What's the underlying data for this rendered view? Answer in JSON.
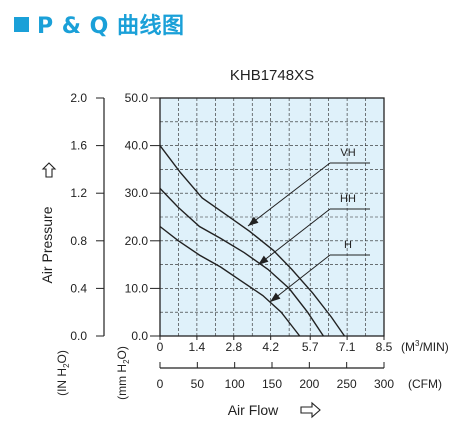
{
  "page": {
    "heading": "P & Q 曲线图",
    "accent_color": "#1aa0d8"
  },
  "chart_data": {
    "type": "line",
    "title": "KHB1748XS",
    "plot_background": "#dff1fa",
    "grid": true,
    "x_axis": {
      "label": "Air Flow",
      "arrow_icon": "right-arrow-outline",
      "primary": {
        "unit": "(M3/MIN)",
        "range": [
          0,
          8.5
        ],
        "ticks": [
          0,
          1.4,
          2.8,
          4.2,
          5.7,
          7.1,
          8.5
        ],
        "tick_labels": [
          "0",
          "1.4",
          "2.8",
          "4.2",
          "5.7",
          "7.1",
          "8.5"
        ]
      },
      "secondary": {
        "unit": "(CFM)",
        "range": [
          0,
          300
        ],
        "ticks": [
          0,
          50,
          100,
          150,
          200,
          250,
          300
        ],
        "tick_labels": [
          "0",
          "50",
          "100",
          "150",
          "200",
          "250",
          "300"
        ]
      }
    },
    "y_axis": {
      "label": "Air Pressure",
      "arrow_icon": "up-arrow-outline",
      "primary": {
        "unit": "(mm H2O)",
        "range": [
          0,
          50
        ],
        "ticks": [
          0,
          10,
          20,
          30,
          40,
          50
        ],
        "tick_labels": [
          "0.0",
          "10.0",
          "20.0",
          "30.0",
          "40.0",
          "50.0"
        ]
      },
      "secondary": {
        "unit": "(IN H2O)",
        "range": [
          0,
          2.0
        ],
        "ticks": [
          0,
          0.4,
          0.8,
          1.2,
          1.6,
          2.0
        ],
        "tick_labels": [
          "0.0",
          "0.4",
          "0.8",
          "1.2",
          "1.6",
          "2.0"
        ]
      }
    },
    "series": [
      {
        "name": "VH",
        "x_unit": "M3/MIN",
        "y_unit": "mm H2O",
        "points": [
          [
            0,
            40.0
          ],
          [
            0.75,
            34.5
          ],
          [
            1.6,
            29.0
          ],
          [
            2.5,
            25.5
          ],
          [
            3.4,
            22.0
          ],
          [
            4.3,
            18.0
          ],
          [
            5.0,
            14.0
          ],
          [
            5.8,
            9.0
          ],
          [
            6.5,
            4.0
          ],
          [
            7.0,
            0
          ]
        ]
      },
      {
        "name": "HH",
        "x_unit": "M3/MIN",
        "y_unit": "mm H2O",
        "points": [
          [
            0,
            31.0
          ],
          [
            0.7,
            27.0
          ],
          [
            1.5,
            23.0
          ],
          [
            2.3,
            20.5
          ],
          [
            3.2,
            17.5
          ],
          [
            4.1,
            14.0
          ],
          [
            4.9,
            10.0
          ],
          [
            5.6,
            5.0
          ],
          [
            6.2,
            0
          ]
        ]
      },
      {
        "name": "H",
        "x_unit": "M3/MIN",
        "y_unit": "mm H2O",
        "points": [
          [
            0,
            23.0
          ],
          [
            0.7,
            20.0
          ],
          [
            1.5,
            17.0
          ],
          [
            2.3,
            14.5
          ],
          [
            3.1,
            11.5
          ],
          [
            3.9,
            8.5
          ],
          [
            4.6,
            5.0
          ],
          [
            5.3,
            0
          ]
        ]
      }
    ]
  }
}
